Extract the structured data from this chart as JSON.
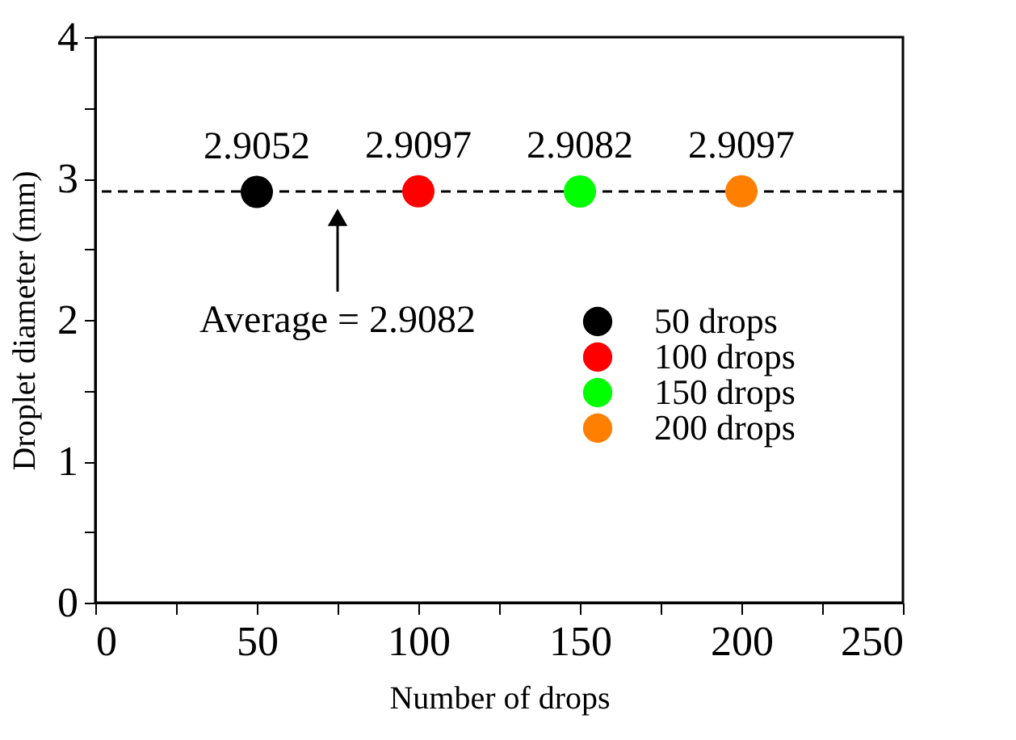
{
  "chart_data": {
    "type": "scatter",
    "xlabel": "Number of drops",
    "ylabel": "Droplet diameter (mm)",
    "series": [
      {
        "name": "50  drops",
        "color": "#000000",
        "x": [
          50
        ],
        "values": [
          2.9052
        ]
      },
      {
        "name": "100 drops",
        "color": "#ff0000",
        "x": [
          100
        ],
        "values": [
          2.9097
        ]
      },
      {
        "name": "150 drops",
        "color": "#00ff00",
        "x": [
          150
        ],
        "values": [
          2.9082
        ]
      },
      {
        "name": "200 drops",
        "color": "#ff8000",
        "x": [
          200
        ],
        "values": [
          2.9097
        ]
      }
    ],
    "data_labels": true,
    "xlim": [
      0,
      250
    ],
    "xticks": [
      0,
      {
        "value": 25,
        "label": null
      },
      50,
      {
        "value": 75,
        "label": null
      },
      100,
      {
        "value": 125,
        "label": null
      },
      150,
      {
        "value": 175,
        "label": null
      },
      200,
      {
        "value": 225,
        "label": null
      },
      250
    ],
    "ylim": [
      0,
      4
    ],
    "yticks": [
      0,
      {
        "value": 0.5,
        "label": null
      },
      1,
      {
        "value": 1.5,
        "label": null
      },
      2,
      {
        "value": 2.5,
        "label": null
      },
      3,
      {
        "value": 3.5,
        "label": null
      },
      4
    ],
    "ref_lines": [
      {
        "axis": "y",
        "value": 2.9082,
        "color": "#000000",
        "line_style": "dashed"
      }
    ],
    "annotations": [
      {
        "text": "Average = 2.9082",
        "x": 75,
        "y": 2.9082
      }
    ],
    "marker": "circle",
    "grid": false,
    "legend": "bottom right"
  }
}
